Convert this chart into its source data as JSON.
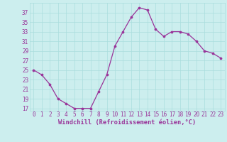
{
  "x": [
    0,
    1,
    2,
    3,
    4,
    5,
    6,
    7,
    8,
    9,
    10,
    11,
    12,
    13,
    14,
    15,
    16,
    17,
    18,
    19,
    20,
    21,
    22,
    23
  ],
  "y": [
    25,
    24,
    22,
    19,
    18,
    17,
    17,
    17,
    20.5,
    24,
    30,
    33,
    36,
    38,
    37.5,
    33.5,
    32,
    33,
    33,
    32.5,
    31,
    29,
    28.5,
    27.5
  ],
  "line_color": "#993399",
  "marker_color": "#993399",
  "bg_color": "#cceeee",
  "grid_color": "#aadddd",
  "xlabel": "Windchill (Refroidissement éolien,°C)",
  "xlabel_color": "#993399",
  "ylim": [
    16.5,
    39
  ],
  "yticks": [
    17,
    19,
    21,
    23,
    25,
    27,
    29,
    31,
    33,
    35,
    37
  ],
  "xlim": [
    -0.5,
    23.5
  ],
  "xticks": [
    0,
    1,
    2,
    3,
    4,
    5,
    6,
    7,
    8,
    9,
    10,
    11,
    12,
    13,
    14,
    15,
    16,
    17,
    18,
    19,
    20,
    21,
    22,
    23
  ],
  "tick_label_color": "#993399",
  "font_family": "monospace",
  "tick_fontsize": 5.5,
  "xlabel_fontsize": 6.2
}
